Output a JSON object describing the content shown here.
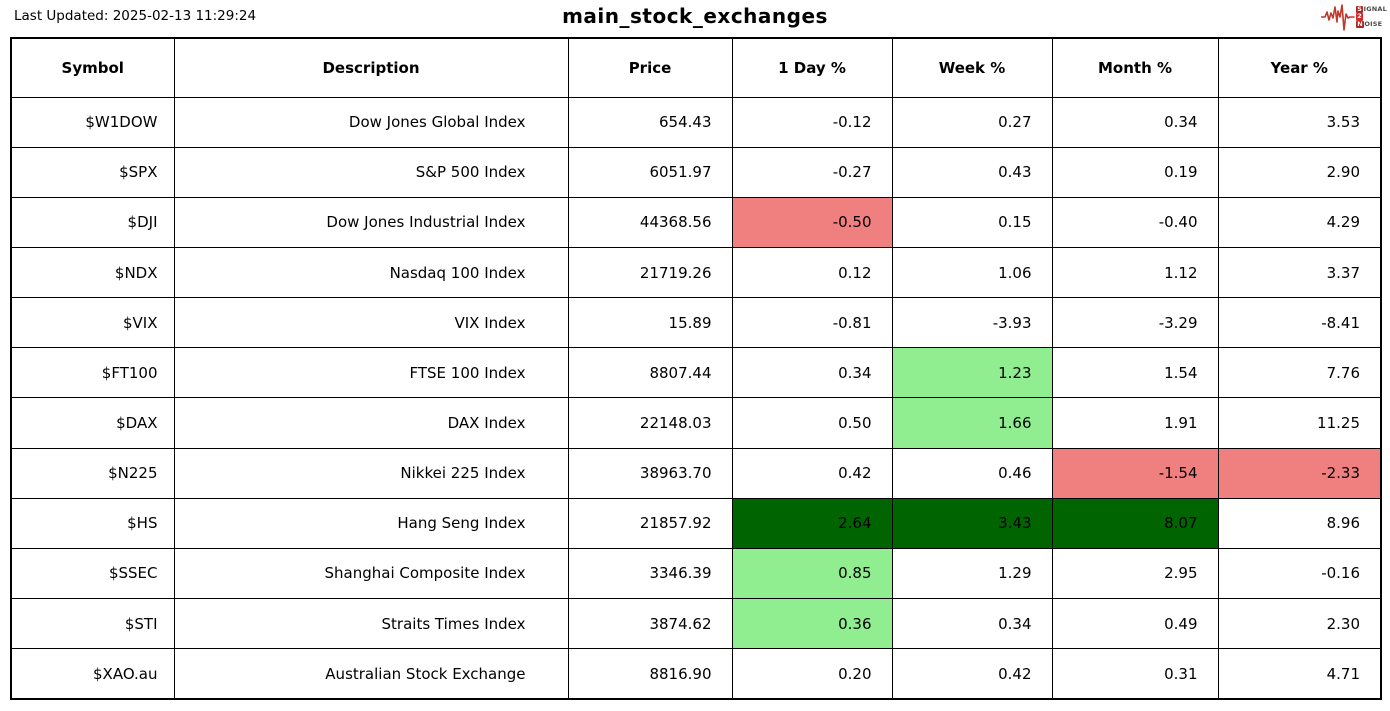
{
  "header": {
    "last_updated": "Last Updated: 2025-02-13 11:29:24",
    "title": "main_stock_exchanges",
    "logo": {
      "word1_initial": "S",
      "word1_rest": "IGNAL",
      "word2": "2",
      "word3_initial": "N",
      "word3_rest": "OISE",
      "waveform_color": "#c0392b"
    }
  },
  "chart_data": {
    "type": "table",
    "title": "main_stock_exchanges",
    "columns": [
      "Symbol",
      "Description",
      "Price",
      "1 Day %",
      "Week %",
      "Month %",
      "Year %"
    ],
    "colors": {
      "up": "#90ee90",
      "down": "#f08080",
      "strong_up": "#006400"
    },
    "rows": [
      {
        "cells": [
          "$W1DOW",
          "Dow Jones Global Index",
          "654.43",
          "-0.12",
          "0.27",
          "0.34",
          "3.53"
        ],
        "bg": {}
      },
      {
        "cells": [
          "$SPX",
          "S&P 500 Index",
          "6051.97",
          "-0.27",
          "0.43",
          "0.19",
          "2.90"
        ],
        "bg": {}
      },
      {
        "cells": [
          "$DJI",
          "Dow Jones Industrial Index",
          "44368.56",
          "-0.50",
          "0.15",
          "-0.40",
          "4.29"
        ],
        "bg": {
          "3": "down"
        }
      },
      {
        "cells": [
          "$NDX",
          "Nasdaq 100 Index",
          "21719.26",
          "0.12",
          "1.06",
          "1.12",
          "3.37"
        ],
        "bg": {}
      },
      {
        "cells": [
          "$VIX",
          "VIX Index",
          "15.89",
          "-0.81",
          "-3.93",
          "-3.29",
          "-8.41"
        ],
        "bg": {}
      },
      {
        "cells": [
          "$FT100",
          "FTSE 100 Index",
          "8807.44",
          "0.34",
          "1.23",
          "1.54",
          "7.76"
        ],
        "bg": {
          "4": "up"
        }
      },
      {
        "cells": [
          "$DAX",
          "DAX Index",
          "22148.03",
          "0.50",
          "1.66",
          "1.91",
          "11.25"
        ],
        "bg": {
          "4": "up"
        }
      },
      {
        "cells": [
          "$N225",
          "Nikkei 225 Index",
          "38963.70",
          "0.42",
          "0.46",
          "-1.54",
          "-2.33"
        ],
        "bg": {
          "5": "down",
          "6": "down"
        }
      },
      {
        "cells": [
          "$HS",
          "Hang Seng Index",
          "21857.92",
          "2.64",
          "3.43",
          "8.07",
          "8.96"
        ],
        "bg": {
          "3": "strong_up",
          "4": "strong_up",
          "5": "strong_up"
        }
      },
      {
        "cells": [
          "$SSEC",
          "Shanghai Composite Index",
          "3346.39",
          "0.85",
          "1.29",
          "2.95",
          "-0.16"
        ],
        "bg": {
          "3": "up"
        }
      },
      {
        "cells": [
          "$STI",
          "Straits Times Index",
          "3874.62",
          "0.36",
          "0.34",
          "0.49",
          "2.30"
        ],
        "bg": {
          "3": "up"
        }
      },
      {
        "cells": [
          "$XAO.au",
          "Australian Stock Exchange",
          "8816.90",
          "0.20",
          "0.42",
          "0.31",
          "4.71"
        ],
        "bg": {}
      }
    ]
  }
}
